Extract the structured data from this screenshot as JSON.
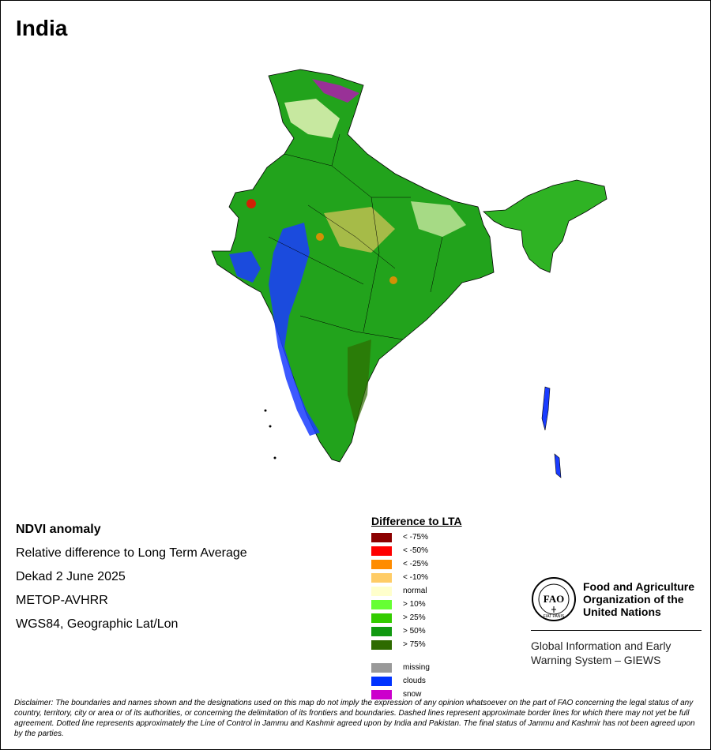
{
  "title": "India",
  "info": {
    "line1": "NDVI anomaly",
    "line2": "Relative difference to Long Term Average",
    "line3": "Dekad 2 June 2025",
    "line4": "METOP-AVHRR",
    "line5": "WGS84, Geographic Lat/Lon"
  },
  "legend": {
    "title": "Difference to LTA",
    "items": [
      {
        "label": "< -75%",
        "color": "#8b0000"
      },
      {
        "label": "< -50%",
        "color": "#ff0000"
      },
      {
        "label": "< -25%",
        "color": "#ff8c00"
      },
      {
        "label": "< -10%",
        "color": "#ffcc66"
      },
      {
        "label": "normal",
        "color": "#ffffcc"
      },
      {
        "label": "> 10%",
        "color": "#66ff33"
      },
      {
        "label": "> 25%",
        "color": "#33cc00"
      },
      {
        "label": "> 50%",
        "color": "#119911"
      },
      {
        "label": "> 75%",
        "color": "#2e6b00"
      }
    ],
    "extra": [
      {
        "label": "missing",
        "color": "#999999"
      },
      {
        "label": "clouds",
        "color": "#0033ff"
      },
      {
        "label": "snow",
        "color": "#cc00cc"
      }
    ]
  },
  "fao": {
    "name_line1": "Food and Agriculture",
    "name_line2": "Organization of the",
    "name_line3": "United Nations",
    "giews_line1": "Global Information and Early",
    "giews_line2": "Warning System – GIEWS",
    "logo_text": "FAO",
    "logo_motto": "FIAT PANIS"
  },
  "disclaimer": "Disclaimer: The boundaries and names shown and the designations used on this map do not imply the expression of any opinion whatsoever on the part of FAO concerning the legal status of any country, territory, city or area or of its authorities, or concerning the delimitation of its frontiers and boundaries. Dashed lines represent approximate border lines for which there may not yet be full agreement. Dotted line represents approximately the Line of Control in Jammu and Kashmir agreed upon by India and Pakistan. The final status of Jammu and Kashmir has not been agreed upon by the parties."
}
